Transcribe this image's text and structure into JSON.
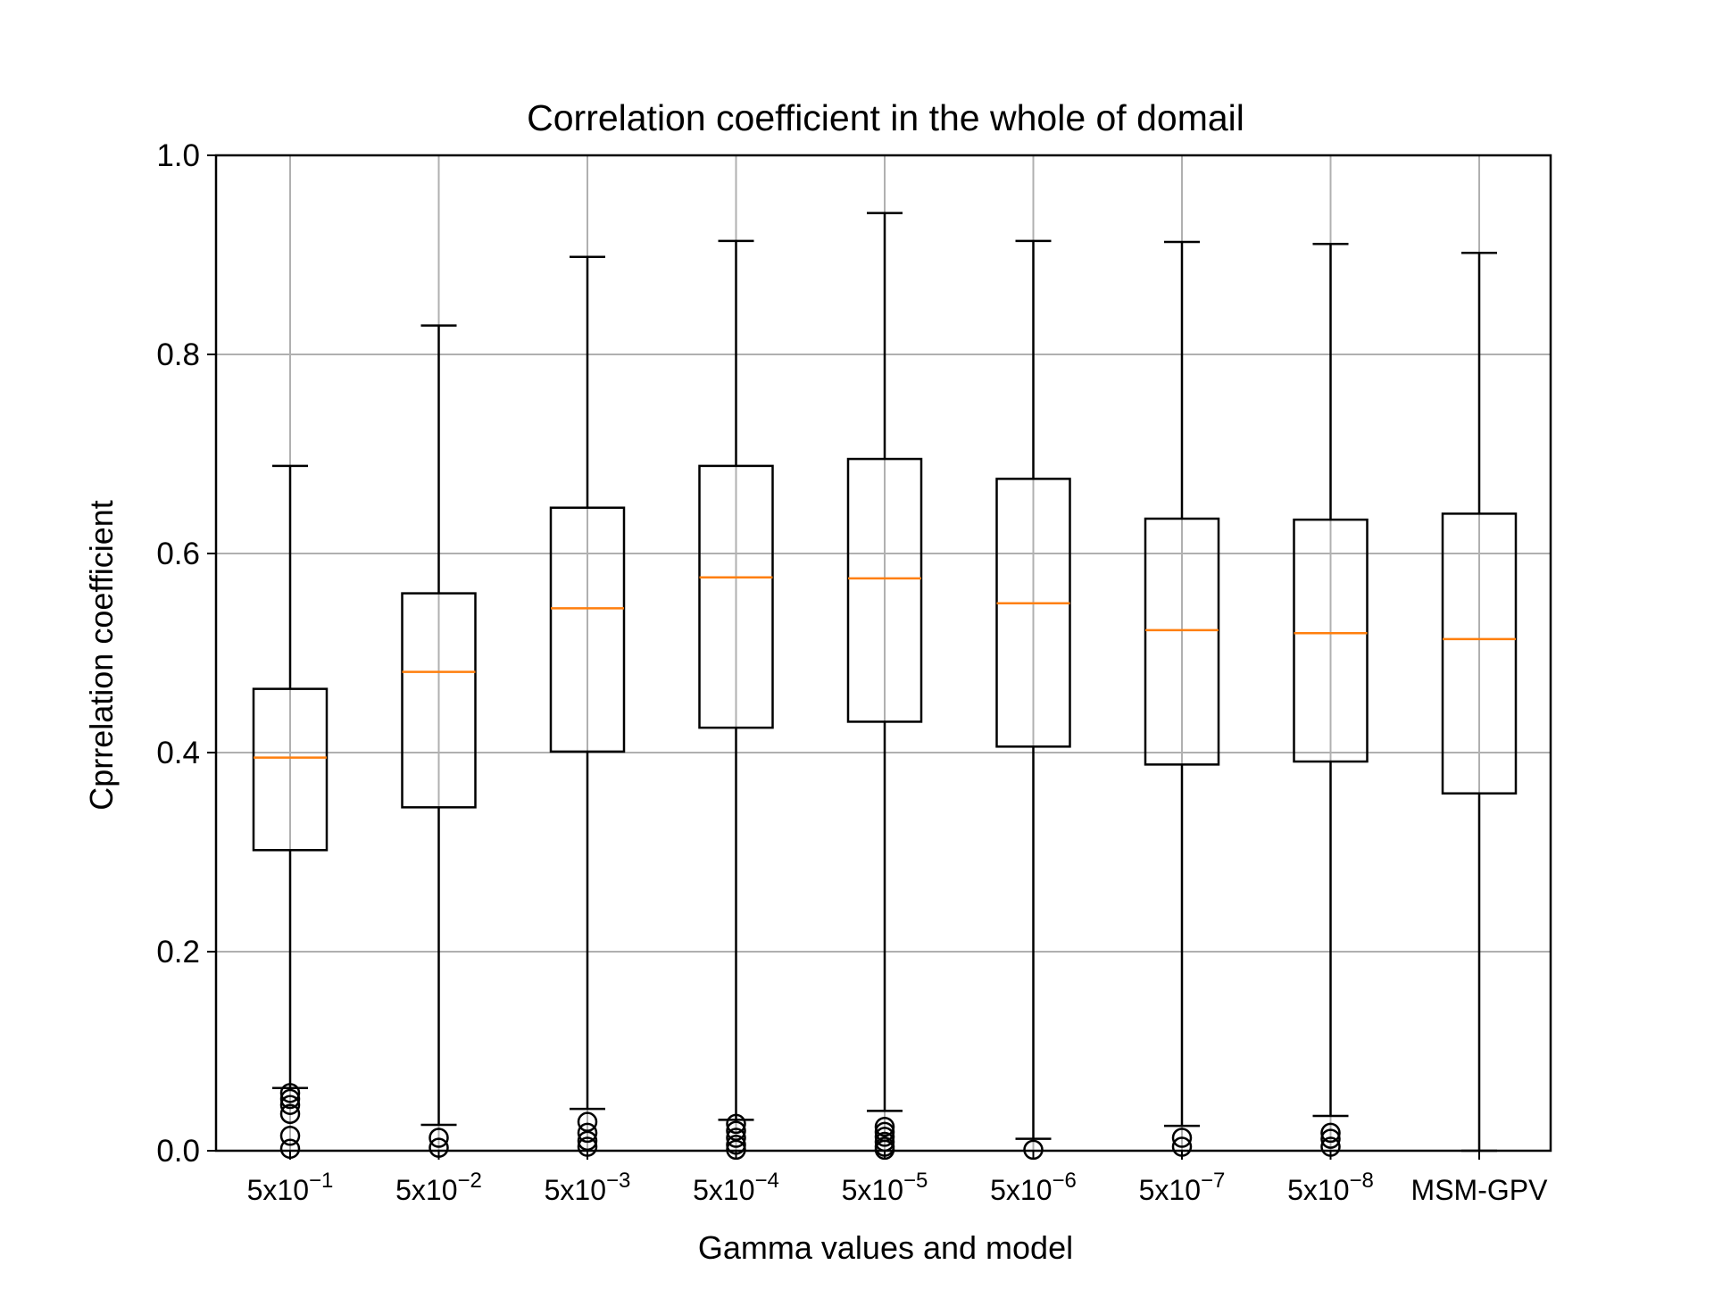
{
  "chart_data": {
    "type": "box",
    "title": "Correlation coefficient in the whole of domail",
    "xlabel": "Gamma values and model",
    "ylabel": "Cprrelation coefficient",
    "ylim": [
      0.0,
      1.0
    ],
    "yticks": [
      "0.0",
      "0.2",
      "0.4",
      "0.6",
      "0.8",
      "1.0"
    ],
    "grid": true,
    "categories": [
      {
        "base": "5x10",
        "exp": "−1"
      },
      {
        "base": "5x10",
        "exp": "−2"
      },
      {
        "base": "5x10",
        "exp": "−3"
      },
      {
        "base": "5x10",
        "exp": "−4"
      },
      {
        "base": "5x10",
        "exp": "−5"
      },
      {
        "base": "5x10",
        "exp": "−6"
      },
      {
        "base": "5x10",
        "exp": "−7"
      },
      {
        "base": "5x10",
        "exp": "−8"
      },
      {
        "base": "MSM-GPV",
        "exp": ""
      }
    ],
    "boxes": [
      {
        "whislo": 0.063,
        "q1": 0.302,
        "med": 0.395,
        "q3": 0.464,
        "whishi": 0.688,
        "fliers": [
          0.058,
          0.052,
          0.046,
          0.037,
          0.015,
          0.002
        ]
      },
      {
        "whislo": 0.026,
        "q1": 0.345,
        "med": 0.481,
        "q3": 0.56,
        "whishi": 0.829,
        "fliers": [
          0.013,
          0.003
        ]
      },
      {
        "whislo": 0.042,
        "q1": 0.401,
        "med": 0.545,
        "q3": 0.646,
        "whishi": 0.898,
        "fliers": [
          0.029,
          0.018,
          0.01,
          0.004
        ]
      },
      {
        "whislo": 0.031,
        "q1": 0.425,
        "med": 0.576,
        "q3": 0.688,
        "whishi": 0.914,
        "fliers": [
          0.027,
          0.02,
          0.013,
          0.006,
          0.001
        ]
      },
      {
        "whislo": 0.04,
        "q1": 0.431,
        "med": 0.575,
        "q3": 0.695,
        "whishi": 0.942,
        "fliers": [
          0.024,
          0.019,
          0.014,
          0.009,
          0.004,
          0.001
        ]
      },
      {
        "whislo": 0.012,
        "q1": 0.406,
        "med": 0.55,
        "q3": 0.675,
        "whishi": 0.914,
        "fliers": [
          0.001
        ]
      },
      {
        "whislo": 0.025,
        "q1": 0.388,
        "med": 0.523,
        "q3": 0.635,
        "whishi": 0.913,
        "fliers": [
          0.013,
          0.004
        ]
      },
      {
        "whislo": 0.035,
        "q1": 0.391,
        "med": 0.52,
        "q3": 0.634,
        "whishi": 0.911,
        "fliers": [
          0.018,
          0.012,
          0.004
        ]
      },
      {
        "whislo": 0.0,
        "q1": 0.359,
        "med": 0.514,
        "q3": 0.64,
        "whishi": 0.902,
        "fliers": []
      }
    ],
    "colors": {
      "box": "#000000",
      "median": "#ff7f0e",
      "grid": "#b0b0b0",
      "flier": "#000000"
    }
  }
}
